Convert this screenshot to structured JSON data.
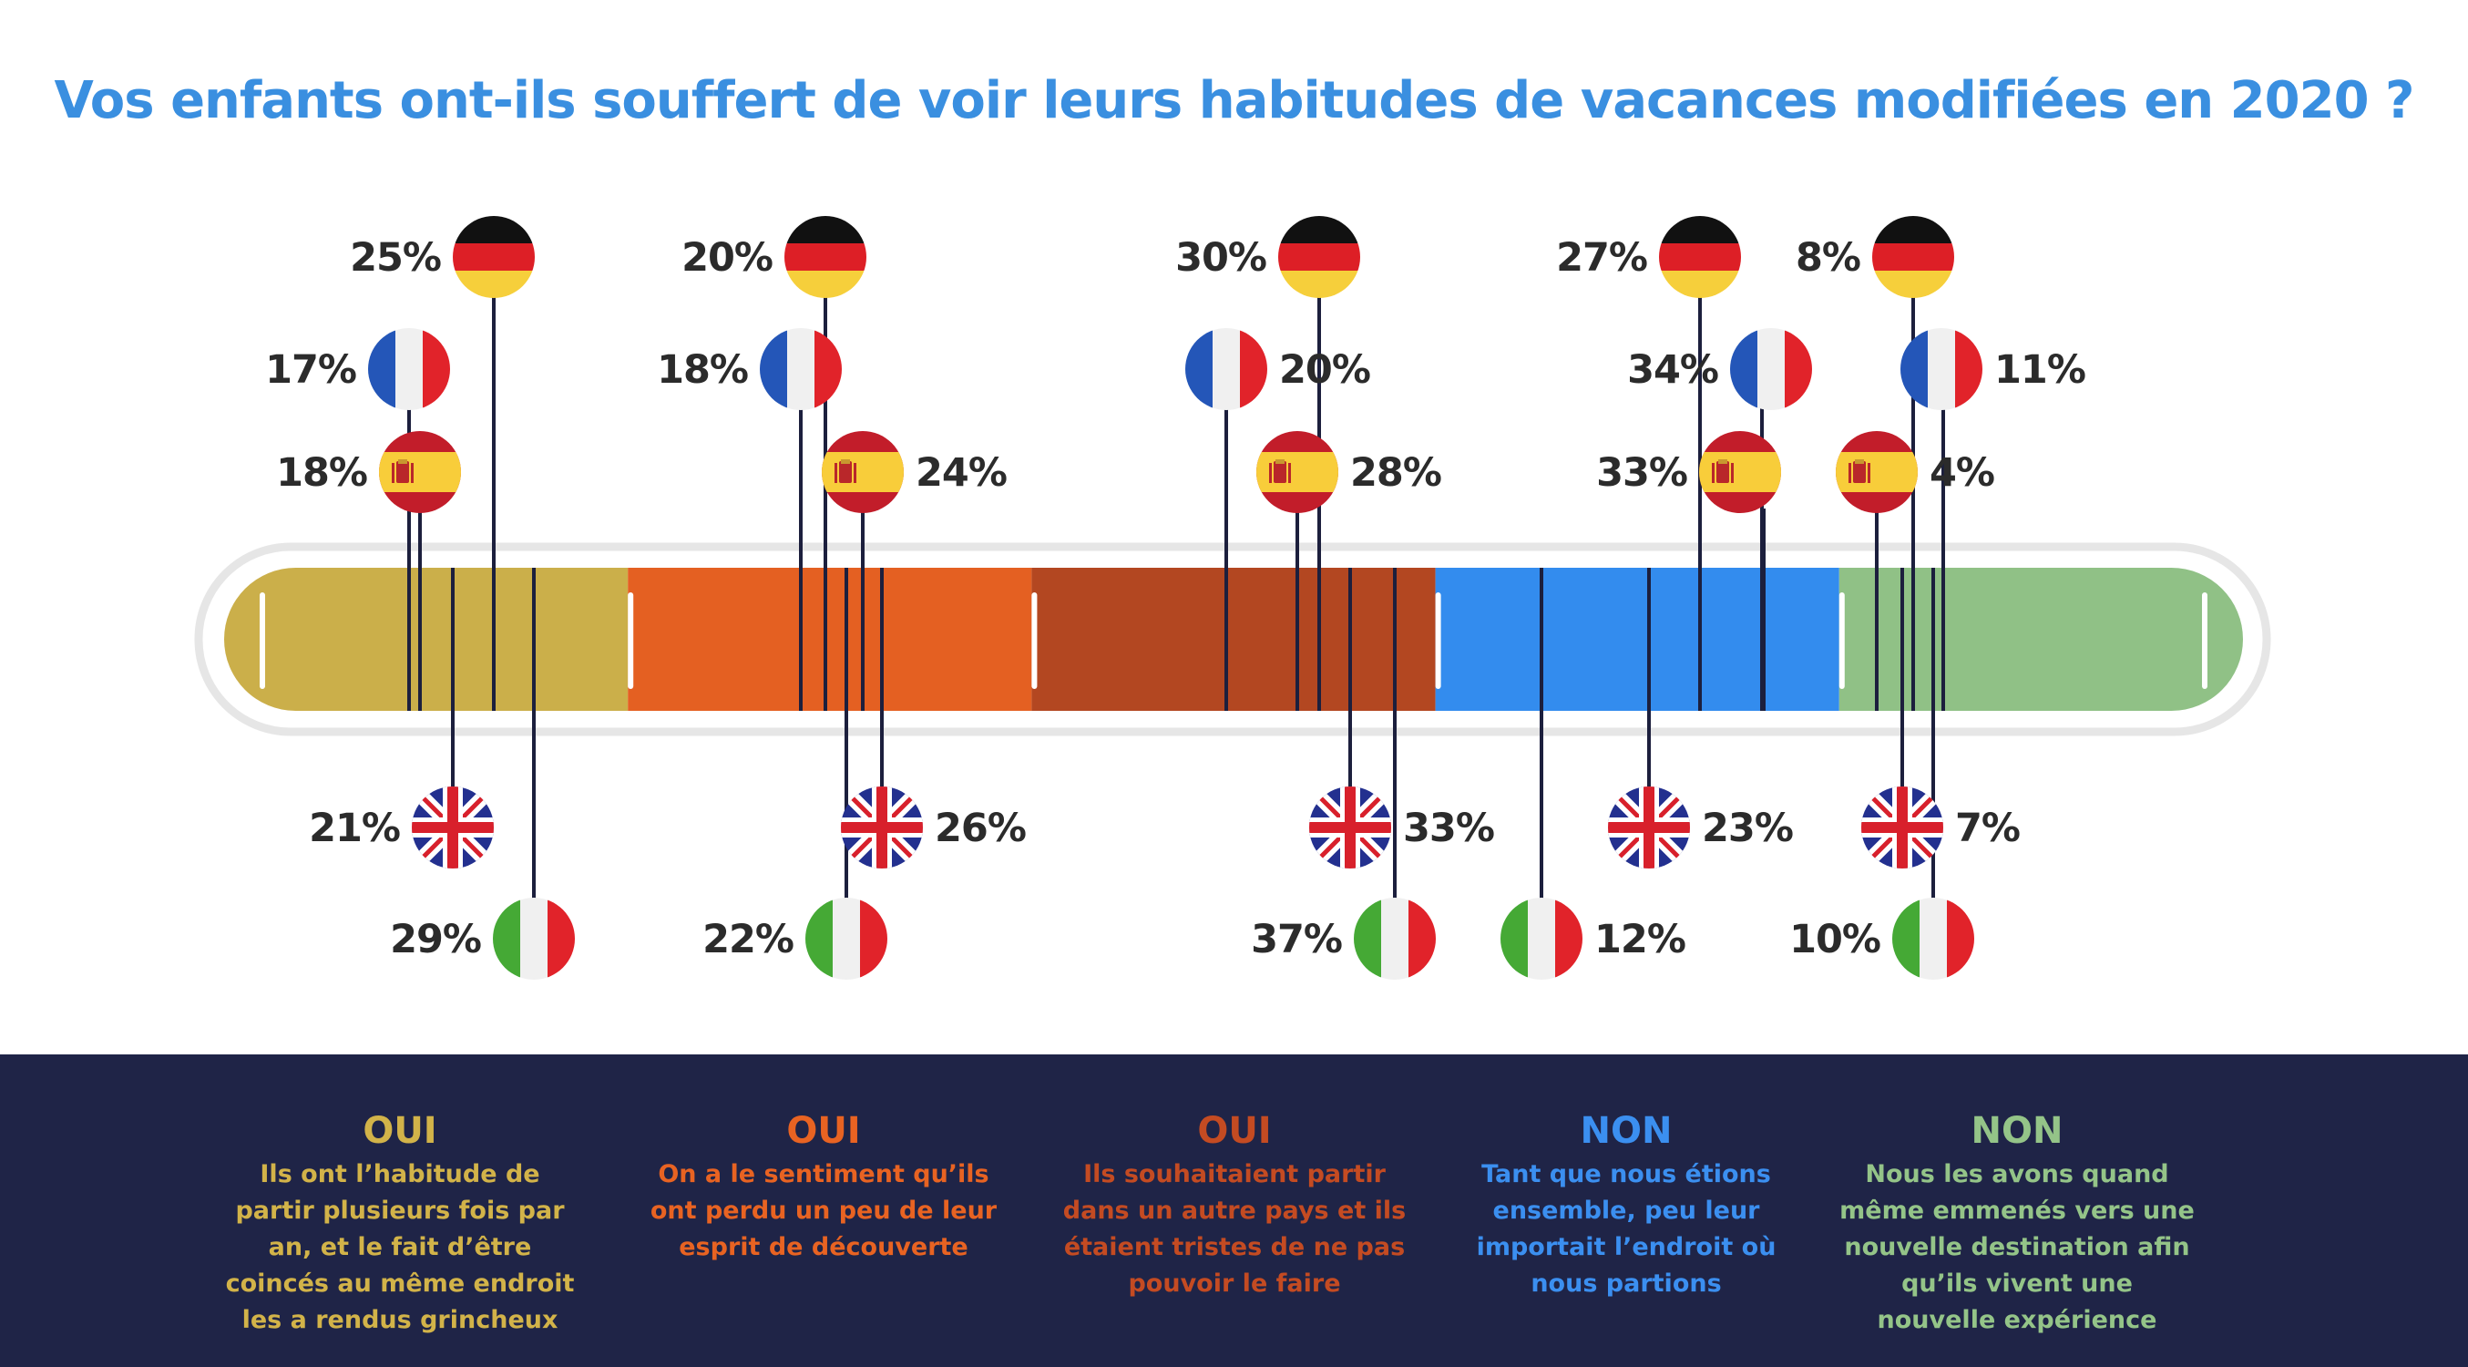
{
  "title": "Vos enfants ont-ils souffert de voir leurs habitudes de vacances modifiées en 2020 ?",
  "colors": {
    "title": "#3a8fe0",
    "footer_bg": "#1f2447",
    "line": "#1c1f3d",
    "track": "#e6e6e6"
  },
  "chart_data": {
    "type": "stacked-indicator",
    "countries": [
      {
        "key": "DE",
        "icon": "germany-flag-icon"
      },
      {
        "key": "FR",
        "icon": "france-flag-icon"
      },
      {
        "key": "ES",
        "icon": "spain-flag-icon"
      },
      {
        "key": "UK",
        "icon": "united-kingdom-flag-icon"
      },
      {
        "key": "IT",
        "icon": "italy-flag-icon"
      }
    ],
    "categories": [
      {
        "answer": "OUI",
        "description": "Ils ont l’habitude de partir plusieurs fois par an, et le fait d’être coincés au même endroit les a rendus grincheux",
        "color": "#cbaf4a",
        "text_color": "#d2b349",
        "values": {
          "DE": 25,
          "FR": 17,
          "ES": 18,
          "UK": 21,
          "IT": 29
        },
        "labels": {
          "DE": "25%",
          "FR": "17%",
          "ES": "18%",
          "UK": "21%",
          "IT": "29%"
        }
      },
      {
        "answer": "OUI",
        "description": "On a le sentiment qu’ils ont perdu un peu de leur esprit de découverte",
        "color": "#e46022",
        "text_color": "#e86322",
        "values": {
          "DE": 20,
          "FR": 18,
          "ES": 24,
          "UK": 26,
          "IT": 22
        },
        "labels": {
          "DE": "20%",
          "FR": "18%",
          "ES": "24%",
          "UK": "26%",
          "IT": "22%"
        }
      },
      {
        "answer": "OUI",
        "description": "Ils souhaitaient partir dans un autre pays et ils étaient tristes de ne pas pouvoir le faire",
        "color": "#b34721",
        "text_color": "#c44b22",
        "values": {
          "DE": 30,
          "FR": 20,
          "ES": 28,
          "UK": 33,
          "IT": 37
        },
        "labels": {
          "DE": "30%",
          "FR": "20%",
          "ES": "28%",
          "UK": "33%",
          "IT": "37%"
        }
      },
      {
        "answer": "NON",
        "description": "Tant que nous étions ensemble, peu leur importait l’endroit où nous partions",
        "color": "#338cee",
        "text_color": "#3b8ff0",
        "values": {
          "DE": 27,
          "FR": 34,
          "ES": 33,
          "UK": 23,
          "IT": 12
        },
        "labels": {
          "DE": "27%",
          "FR": "34%",
          "ES": "33%",
          "UK": "23%",
          "IT": "12%"
        }
      },
      {
        "answer": "NON",
        "description": "Nous les avons quand même emmenés vers une nouvelle destination afin qu’ils vivent une nouvelle expérience",
        "color": "#90c186",
        "text_color": "#94c488",
        "values": {
          "DE": 8,
          "FR": 11,
          "ES": 4,
          "UK": 7,
          "IT": 10
        },
        "labels": {
          "DE": "8%",
          "FR": "11%",
          "ES": "4%",
          "UK": "7%",
          "IT": "10%"
        }
      }
    ]
  }
}
